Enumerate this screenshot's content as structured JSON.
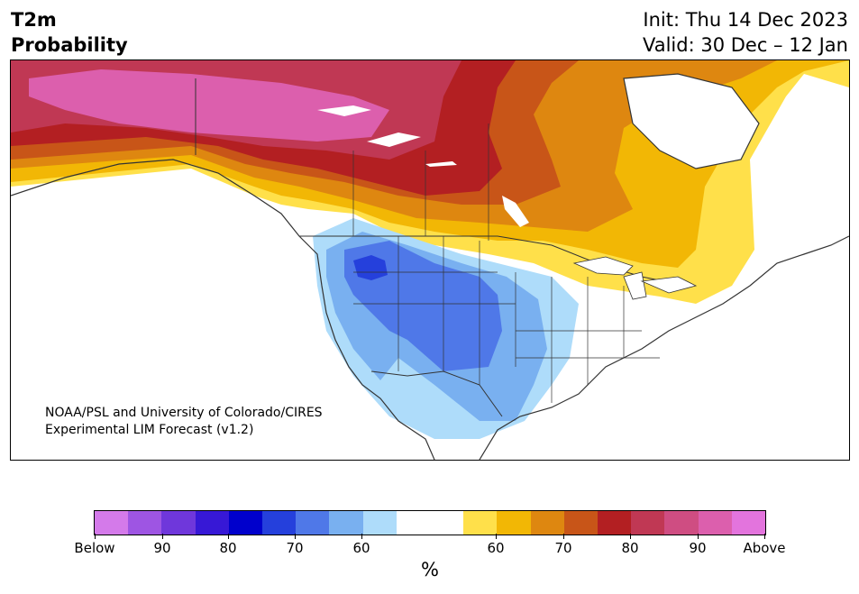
{
  "header": {
    "variable": "T2m",
    "product": "Probability",
    "init": "Init: Thu 14 Dec 2023",
    "valid": "Valid: 30 Dec – 12 Jan"
  },
  "credit": {
    "line1": "NOAA/PSL and University of Colorado/CIRES",
    "line2": "Experimental LIM Forecast (v1.2)"
  },
  "colorbar": {
    "unit": "%",
    "colors": [
      "#d47aea",
      "#9e55e3",
      "#6f37db",
      "#3718d6",
      "#0000cc",
      "#2540dc",
      "#4f78e8",
      "#79b0f0",
      "#aedcfa",
      "#ffffff",
      "#ffffff",
      "#ffe04a",
      "#f2b705",
      "#de8710",
      "#c85518",
      "#b31f22",
      "#c03854",
      "#cf4d82",
      "#dc5fad",
      "#e374dd"
    ],
    "tick_labels": [
      "Below",
      "90",
      "80",
      "70",
      "60",
      "60",
      "70",
      "80",
      "90",
      "Above"
    ],
    "legend_categories": {
      "below_normal": [
        "Below",
        "90",
        "80",
        "70",
        "60"
      ],
      "above_normal": [
        "60",
        "70",
        "80",
        "90",
        "Above"
      ]
    }
  },
  "map": {
    "region": "North America",
    "features": [
      "coastlines",
      "country borders",
      "state and province borders",
      "lakes"
    ]
  }
}
